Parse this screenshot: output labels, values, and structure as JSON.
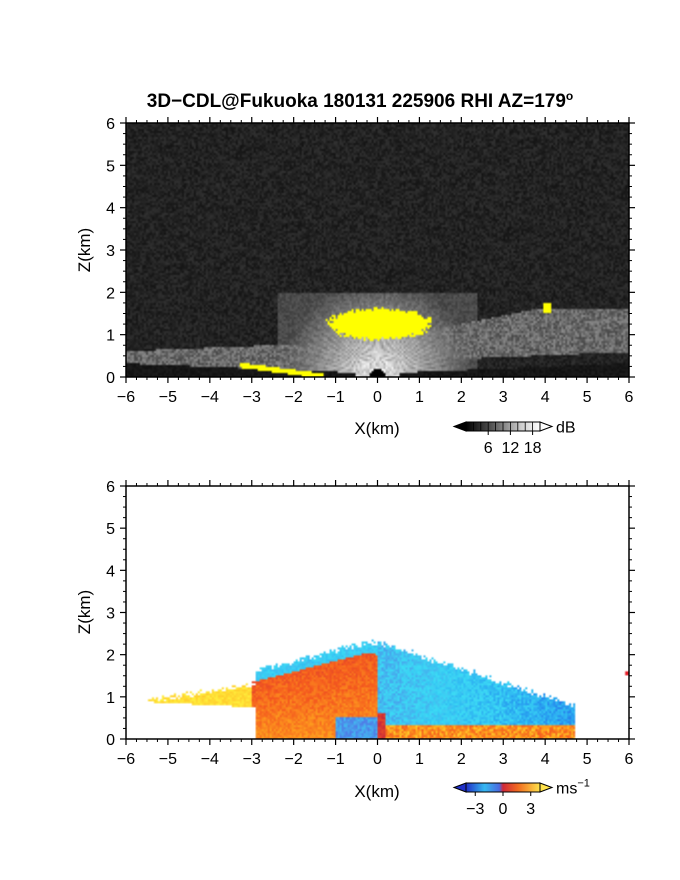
{
  "title": "3D−CDL@Fukuoka 180131 225906 RHI AZ=179",
  "title_sup": "o",
  "colors": {
    "background": "#ffffff",
    "frame": "#000000",
    "highlight": "#ffff00"
  },
  "chart_data": [
    {
      "type": "heatmap",
      "name": "signal-intensity-rhi",
      "xlabel": "X(km)",
      "ylabel": "Z(km)",
      "xlim": [
        -6,
        6
      ],
      "ylim": [
        0,
        6
      ],
      "x_ticks": [
        -6,
        -5,
        -4,
        -3,
        -2,
        -1,
        0,
        1,
        2,
        3,
        4,
        5,
        6
      ],
      "y_ticks": [
        0,
        1,
        2,
        3,
        4,
        5,
        6
      ],
      "colorbar": {
        "unit": "dB",
        "ticks": [
          6,
          12,
          18
        ],
        "range": [
          0,
          20
        ],
        "colormap": "black-white, yellow above max"
      },
      "features": {
        "yellow_core": {
          "x_range": [
            -1.3,
            1.4
          ],
          "z_range": [
            0.85,
            1.65
          ]
        },
        "yellow_near_ground": {
          "x_range": [
            -3.3,
            -1.3
          ],
          "z_range": [
            0.0,
            0.5
          ]
        },
        "yellow_patch": {
          "x": 4.05,
          "z": 1.63
        },
        "bright_fan_top_km": 2.0
      }
    },
    {
      "type": "heatmap",
      "name": "radial-velocity-rhi",
      "xlabel": "X(km)",
      "ylabel": "Z(km)",
      "xlim": [
        -6,
        6
      ],
      "ylim": [
        0,
        6
      ],
      "x_ticks": [
        -6,
        -5,
        -4,
        -3,
        -2,
        -1,
        0,
        1,
        2,
        3,
        4,
        5,
        6
      ],
      "y_ticks": [
        0,
        1,
        2,
        3,
        4,
        5,
        6
      ],
      "colorbar": {
        "unit": "ms",
        "unit_sup": "−1",
        "ticks": [
          "−3",
          "0",
          "3"
        ],
        "range": [
          -4,
          4
        ],
        "colormap": "blue-cyan-red-yellow"
      },
      "features": {
        "echo_x_range": [
          -5.5,
          4.7
        ],
        "echo_z_range": [
          0.0,
          2.35
        ],
        "positive_region_x": [
          -5.5,
          0.0
        ],
        "negative_region_x": [
          -2.9,
          4.7
        ],
        "isolated_echo": {
          "x": 5.95,
          "z": 1.55
        }
      }
    }
  ]
}
